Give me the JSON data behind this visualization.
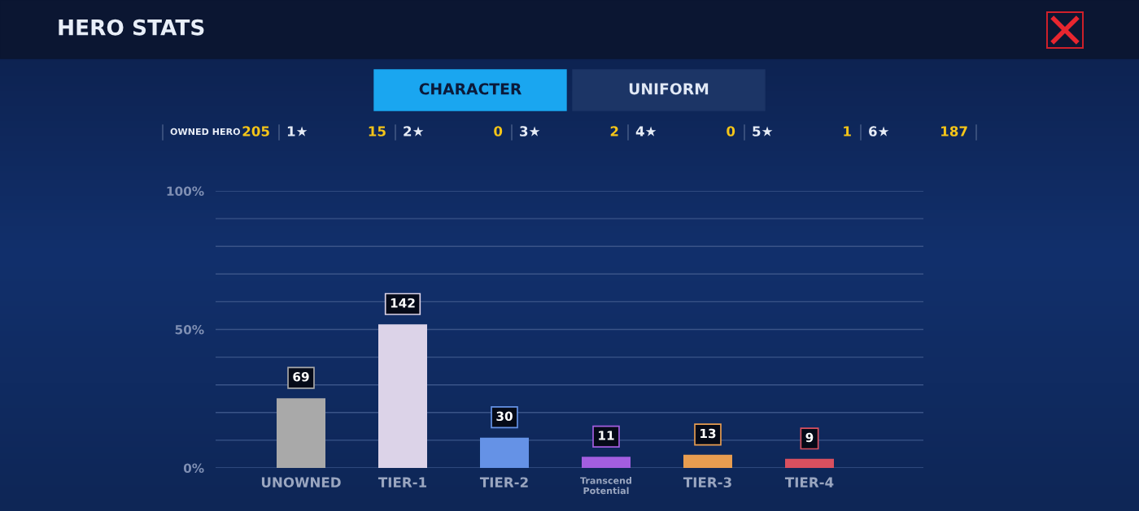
{
  "chart_data": {
    "type": "bar",
    "title": "HERO STATS",
    "categories": [
      "UNOWNED",
      "TIER-1",
      "TIER-2",
      "Transcend\nPotential",
      "TIER-3",
      "TIER-4"
    ],
    "values": [
      69,
      142,
      30,
      11,
      13,
      9
    ],
    "data_labels": true,
    "colors": [
      "#a9a9a9",
      "#dcd3e8",
      "#6592e6",
      "#a35ee0",
      "#e89d50",
      "#d9505f"
    ],
    "ylim": [
      0,
      274
    ],
    "y2lim": [
      0,
      100
    ],
    "y2ticks": [
      {
        "value": 0,
        "label": "0%"
      },
      {
        "value": 10,
        "label": null
      },
      {
        "value": 20,
        "label": null
      },
      {
        "value": 30,
        "label": null
      },
      {
        "value": 40,
        "label": null
      },
      {
        "value": 50,
        "label": "50%"
      },
      {
        "value": 60,
        "label": null
      },
      {
        "value": 70,
        "label": null
      },
      {
        "value": 80,
        "label": null
      },
      {
        "value": 90,
        "label": null
      },
      {
        "value": 100,
        "label": "100%"
      }
    ],
    "grid": "y",
    "annotations": [
      "CHARACTER",
      "UNIFORM",
      "OWNED HERO",
      "205",
      "1★",
      "15",
      "2★",
      "0",
      "3★",
      "2",
      "4★",
      "0",
      "5★",
      "1",
      "6★",
      "187"
    ]
  }
}
